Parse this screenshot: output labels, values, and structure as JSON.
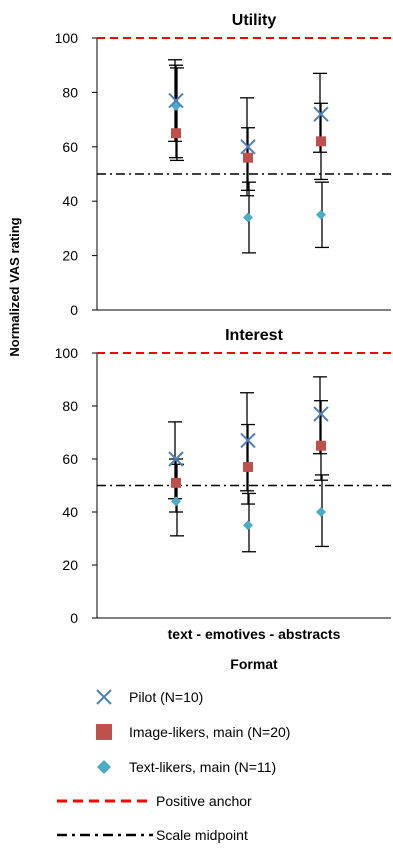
{
  "figure": {
    "ylabel": "Normalized VAS rating",
    "xlabel": "Format",
    "categories_label": "text -  emotives - abstracts"
  },
  "colors": {
    "pilot": "#4f81bd",
    "image": "#c0504d",
    "text": "#4bacc6",
    "anchor": "#ff0000",
    "midpoint": "#000000",
    "errorbar": "#000000"
  },
  "legend": [
    {
      "key": "pilot",
      "label": "Pilot (N=10)"
    },
    {
      "key": "image",
      "label": "Image-likers, main (N=20)"
    },
    {
      "key": "text",
      "label": "Text-likers, main (N=11)"
    },
    {
      "key": "anchor",
      "label": "Positive anchor"
    },
    {
      "key": "midpoint",
      "label": "Scale midpoint"
    }
  ],
  "chart_data": [
    {
      "type": "scatter",
      "title": "Utility",
      "categories": [
        "text",
        "emotives",
        "abstracts"
      ],
      "ylim": [
        0,
        100
      ],
      "yticks": [
        "0",
        "20",
        "40",
        "60",
        "80",
        "100"
      ],
      "reference_lines": {
        "positive_anchor": 100,
        "scale_midpoint": 50
      },
      "series": [
        {
          "name": "Pilot (N=10)",
          "values": [
            77,
            60,
            72
          ],
          "err": [
            [
              62,
              92
            ],
            [
              42,
              78
            ],
            [
              58,
              87
            ]
          ]
        },
        {
          "name": "Image-likers, main (N=20)",
          "values": [
            65,
            56,
            62
          ],
          "err": [
            [
              56,
              90
            ],
            [
              44,
              67
            ],
            [
              48,
              76
            ]
          ]
        },
        {
          "name": "Text-likers, main (N=11)",
          "values": [
            75,
            34,
            35
          ],
          "err": [
            [
              55,
              89
            ],
            [
              21,
              47
            ],
            [
              23,
              47
            ]
          ]
        }
      ]
    },
    {
      "type": "scatter",
      "title": "Interest",
      "categories": [
        "text",
        "emotives",
        "abstracts"
      ],
      "ylim": [
        0,
        100
      ],
      "yticks": [
        "0",
        "20",
        "40",
        "60",
        "80",
        "100"
      ],
      "reference_lines": {
        "positive_anchor": 100,
        "scale_midpoint": 50
      },
      "series": [
        {
          "name": "Pilot (N=10)",
          "values": [
            60,
            67,
            77
          ],
          "err": [
            [
              45,
              74
            ],
            [
              48,
              85
            ],
            [
              62,
              91
            ]
          ]
        },
        {
          "name": "Image-likers, main (N=20)",
          "values": [
            51,
            57,
            65
          ],
          "err": [
            [
              40,
              60
            ],
            [
              43,
              73
            ],
            [
              52,
              82
            ]
          ]
        },
        {
          "name": "Text-likers, main (N=11)",
          "values": [
            44,
            35,
            40
          ],
          "err": [
            [
              31,
              58
            ],
            [
              25,
              47
            ],
            [
              27,
              54
            ]
          ]
        }
      ]
    }
  ]
}
